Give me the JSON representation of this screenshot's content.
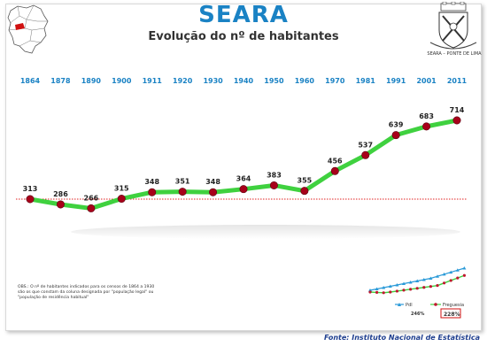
{
  "header": {
    "title": "SEARA",
    "subtitle": "Evolução do nº de habitantes",
    "crest_caption": "SEARA – PONTE DE LIMA"
  },
  "colors": {
    "title": "#1a82c4",
    "year_labels": "#1a82c4",
    "line": "#3fd13f",
    "marker": "#a8001a",
    "reference_line": "#e02020",
    "source": "#1f3f8f",
    "mini_pdl": "#2a9ad8",
    "mini_freguesia": "#c0182e"
  },
  "chart_data": {
    "type": "line",
    "title": "Evolução do nº de habitantes",
    "categories": [
      "1864",
      "1878",
      "1890",
      "1900",
      "1911",
      "1920",
      "1930",
      "1940",
      "1950",
      "1960",
      "1970",
      "1981",
      "1991",
      "2001",
      "2011"
    ],
    "series": [
      {
        "values": [
          313,
          286,
          266,
          315,
          348,
          351,
          348,
          364,
          383,
          355,
          456,
          537,
          639,
          683,
          714
        ]
      }
    ],
    "reference_line_value": 313,
    "data_labels": true,
    "grid": false
  },
  "mini_chart": {
    "legend": [
      {
        "name": "Pdl",
        "marker": "triangle"
      },
      {
        "name": "Freguesia",
        "marker": "circle"
      }
    ],
    "growth_pdl": "246%",
    "growth_freguesia": "228%"
  },
  "note": {
    "text": "OBS.: O nº de habitantes indicados para os censos de 1864 a 1930 são os que constam da coluna designada por \"população legal\" ou \"população de residência habitual\""
  },
  "footer": {
    "source": "Fonte: Instituto Nacional de Estatística"
  }
}
